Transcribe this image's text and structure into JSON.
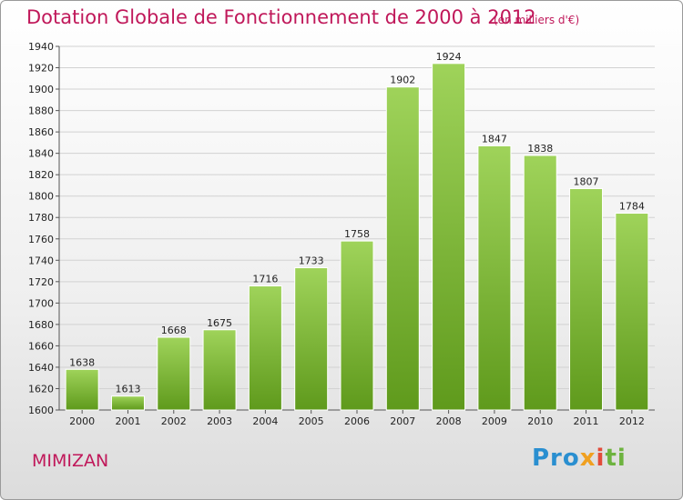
{
  "title": "Dotation Globale de Fonctionnement de 2000 à 2012",
  "units": "(en milliers d'€)",
  "commune": "MIMIZAN",
  "logo": {
    "p1": "Pro",
    "p2": "x",
    "p3": "i",
    "p4": "ti"
  },
  "colors": {
    "bar_top": "#9fd35a",
    "bar_bottom": "#5f9a1c",
    "title": "#c0185a"
  },
  "chart_data": {
    "type": "bar",
    "title": "Dotation Globale de Fonctionnement de 2000 à 2012",
    "xlabel": "",
    "ylabel": "",
    "categories": [
      "2000",
      "2001",
      "2002",
      "2003",
      "2004",
      "2005",
      "2006",
      "2007",
      "2008",
      "2009",
      "2010",
      "2011",
      "2012"
    ],
    "values": [
      1638,
      1613,
      1668,
      1675,
      1716,
      1733,
      1758,
      1902,
      1924,
      1847,
      1838,
      1807,
      1784
    ],
    "ylim": [
      1600,
      1940
    ],
    "yticks": [
      1600,
      1620,
      1640,
      1660,
      1680,
      1700,
      1720,
      1740,
      1760,
      1780,
      1800,
      1820,
      1840,
      1860,
      1880,
      1900,
      1920,
      1940
    ],
    "grid": true
  }
}
